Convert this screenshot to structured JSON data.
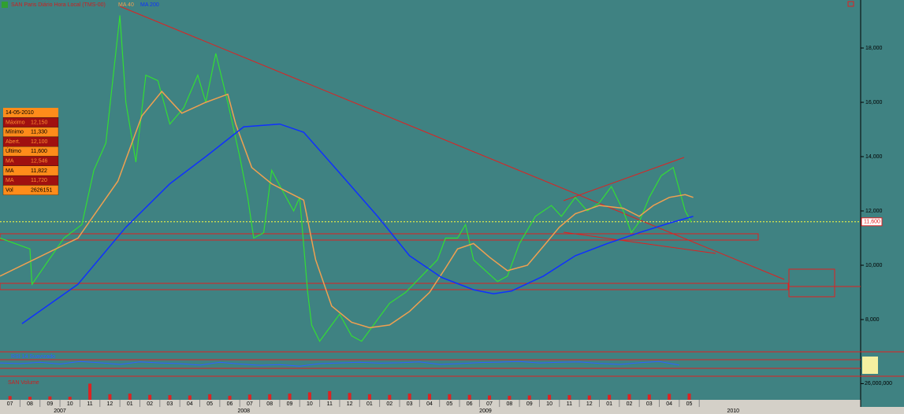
{
  "chart_data": {
    "type": "line",
    "title": "SAN Paris Diário Hora Local (TMS-00)",
    "xlim": [
      0,
      43.08
    ],
    "ylim": [
      6812,
      19768
    ],
    "yticks": [
      {
        "value": 8000,
        "label": "8,000"
      },
      {
        "value": 10000,
        "label": "10,000"
      },
      {
        "value": 12000,
        "label": "12,000"
      },
      {
        "value": 14000,
        "label": "14,000"
      },
      {
        "value": 16000,
        "label": "16,000"
      },
      {
        "value": 18000,
        "label": "18,000"
      }
    ],
    "xticks": [
      {
        "value": 0.5,
        "label": "07"
      },
      {
        "value": 1.5,
        "label": "08"
      },
      {
        "value": 2.5,
        "label": "09"
      },
      {
        "value": 3.5,
        "label": "10"
      },
      {
        "value": 4.5,
        "label": "11"
      },
      {
        "value": 5.5,
        "label": "12"
      },
      {
        "value": 6.5,
        "label": "01"
      },
      {
        "value": 7.5,
        "label": "02"
      },
      {
        "value": 8.5,
        "label": "03"
      },
      {
        "value": 9.5,
        "label": "04"
      },
      {
        "value": 10.5,
        "label": "05"
      },
      {
        "value": 11.5,
        "label": "06"
      },
      {
        "value": 12.5,
        "label": "07"
      },
      {
        "value": 13.5,
        "label": "08"
      },
      {
        "value": 14.5,
        "label": "09"
      },
      {
        "value": 15.5,
        "label": "10"
      },
      {
        "value": 16.5,
        "label": "11"
      },
      {
        "value": 17.5,
        "label": "12"
      },
      {
        "value": 18.5,
        "label": "01"
      },
      {
        "value": 19.5,
        "label": "02"
      },
      {
        "value": 20.5,
        "label": "03"
      },
      {
        "value": 21.5,
        "label": "04"
      },
      {
        "value": 22.5,
        "label": "05"
      },
      {
        "value": 23.5,
        "label": "06"
      },
      {
        "value": 24.5,
        "label": "07"
      },
      {
        "value": 25.5,
        "label": "08"
      },
      {
        "value": 26.5,
        "label": "09"
      },
      {
        "value": 27.5,
        "label": "10"
      },
      {
        "value": 28.5,
        "label": "11"
      },
      {
        "value": 29.5,
        "label": "12"
      },
      {
        "value": 30.5,
        "label": "01"
      },
      {
        "value": 31.5,
        "label": "02"
      },
      {
        "value": 32.5,
        "label": "03"
      },
      {
        "value": 33.5,
        "label": "04"
      },
      {
        "value": 34.5,
        "label": "05"
      }
    ],
    "year_ticks": [
      {
        "value": 3,
        "label": "2007"
      },
      {
        "value": 12.2,
        "label": "2008"
      },
      {
        "value": 24.3,
        "label": "2009"
      },
      {
        "value": 36.7,
        "label": "2010"
      }
    ],
    "last_price": {
      "value": 11600,
      "label": "11,600"
    },
    "series": [
      {
        "name": "SAN",
        "color": "#33dd33",
        "x": [
          0,
          1.5,
          1.6,
          3.2,
          4.1,
          4.7,
          5.3,
          6.0,
          6.3,
          6.8,
          7.3,
          7.9,
          8.5,
          9.2,
          9.9,
          10.3,
          10.8,
          11.4,
          12.0,
          12.4,
          12.7,
          13.2,
          13.6,
          14.1,
          14.7,
          15.0,
          15.4,
          15.6,
          16.0,
          16.6,
          17.0,
          17.6,
          18.1,
          18.7,
          19.5,
          20.3,
          21.1,
          21.9,
          22.3,
          22.9,
          23.3,
          23.7,
          24.3,
          24.9,
          25.4,
          26.0,
          26.8,
          27.6,
          28.1,
          28.8,
          29.4,
          30.0,
          30.6,
          31.2,
          31.6,
          32.0,
          32.5,
          33.1,
          33.7,
          34.0,
          34.3,
          34.6
        ],
        "values": [
          11000,
          10600,
          9300,
          11000,
          11500,
          13500,
          14500,
          19200,
          16000,
          13800,
          17000,
          16800,
          15200,
          15800,
          17000,
          16000,
          17800,
          16000,
          14000,
          12500,
          11000,
          11200,
          13500,
          12800,
          12000,
          12500,
          9000,
          7800,
          7200,
          7800,
          8200,
          7400,
          7200,
          7800,
          8600,
          9000,
          9600,
          10200,
          11000,
          11000,
          11500,
          10200,
          9800,
          9400,
          9600,
          10800,
          11800,
          12200,
          11800,
          12500,
          12000,
          12300,
          12900,
          12000,
          11200,
          11600,
          12500,
          13300,
          13600,
          12800,
          12000,
          11600
        ]
      },
      {
        "name": "MA 40",
        "color": "#f0a050",
        "x": [
          0,
          3.9,
          5.9,
          7.1,
          8.1,
          9.1,
          10.3,
          11.4,
          11.8,
          12.6,
          13.6,
          14.4,
          15.2,
          15.8,
          16.6,
          17.6,
          18.5,
          19.5,
          20.5,
          21.5,
          22.3,
          22.9,
          23.7,
          24.5,
          25.4,
          26.4,
          27.2,
          28.0,
          28.8,
          30.0,
          31.2,
          32.0,
          32.7,
          33.5,
          34.3,
          34.7
        ],
        "values": [
          9600,
          11000,
          13100,
          15500,
          16400,
          15600,
          16000,
          16300,
          15200,
          13600,
          13000,
          12700,
          12400,
          10200,
          8500,
          7900,
          7700,
          7800,
          8300,
          9000,
          9900,
          10600,
          10800,
          10300,
          9800,
          10000,
          10700,
          11400,
          11900,
          12200,
          12100,
          11800,
          12200,
          12500,
          12600,
          12500
        ]
      },
      {
        "name": "MA 200",
        "color": "#1030ff",
        "x": [
          1.1,
          3.9,
          6.3,
          8.5,
          10.3,
          12.2,
          14.0,
          15.2,
          17.0,
          18.9,
          20.5,
          22.1,
          23.7,
          24.7,
          25.6,
          27.2,
          28.8,
          30.4,
          32.0,
          33.5,
          34.7
        ],
        "values": [
          7850,
          9300,
          11400,
          13000,
          14000,
          15100,
          15200,
          14900,
          13400,
          11800,
          10350,
          9550,
          9100,
          8950,
          9050,
          9600,
          10350,
          10800,
          11200,
          11550,
          11800
        ]
      }
    ],
    "info": {
      "date": "14-05-2010",
      "rows": [
        [
          "Máximo",
          "12,150"
        ],
        [
          "Mínimo",
          "11,330"
        ],
        [
          "Abert.",
          "12,100"
        ],
        [
          "Último",
          "11,600"
        ],
        [
          "MA",
          "12,546"
        ],
        [
          "MA",
          "11,822"
        ],
        [
          "MA",
          "11,720"
        ],
        [
          "Vol",
          "2626151"
        ]
      ]
    },
    "rsi": {
      "name": "RSI 14 Suavizado",
      "color": "#3060ff",
      "ylim": [
        0,
        100
      ],
      "x": [
        0,
        1,
        2,
        3,
        4,
        5,
        6,
        7,
        8,
        9,
        10,
        11,
        12,
        13,
        14,
        15,
        16,
        17,
        18,
        19,
        20,
        21,
        22,
        23,
        24,
        25,
        26,
        27,
        28,
        29,
        30,
        31,
        32,
        33,
        34
      ],
      "values": [
        55,
        52,
        58,
        50,
        62,
        56,
        48,
        60,
        55,
        52,
        45,
        58,
        50,
        44,
        47,
        40,
        52,
        55,
        58,
        54,
        56,
        60,
        48,
        52,
        57,
        59,
        62,
        55,
        58,
        60,
        53,
        48,
        56,
        62,
        45
      ]
    },
    "volume": {
      "name": "SAN Volume",
      "color": "#dd2222",
      "ylim": [
        0,
        36600000
      ],
      "yticks": [
        {
          "value": 26000000,
          "label": "26,000,000"
        }
      ],
      "x": [
        0.5,
        1.5,
        2.5,
        3.5,
        4.5,
        5.5,
        6.5,
        7.5,
        8.5,
        9.5,
        10.5,
        11.5,
        12.5,
        13.5,
        14.5,
        15.5,
        16.5,
        17.5,
        18.5,
        19.5,
        20.5,
        21.5,
        22.5,
        23.5,
        24.5,
        25.5,
        26.5,
        27.5,
        28.5,
        29.5,
        30.5,
        31.5,
        32.5,
        33.5,
        34.5
      ],
      "values": [
        6000000,
        5000000,
        5500000,
        5000000,
        26000000,
        9000000,
        10000000,
        8000000,
        7500000,
        7000000,
        9000000,
        6500000,
        8500000,
        9000000,
        10000000,
        12000000,
        14000000,
        11000000,
        9000000,
        8000000,
        10000000,
        9500000,
        9000000,
        8000000,
        7000000,
        6500000,
        7000000,
        8000000,
        7500000,
        7000000,
        8000000,
        9000000,
        8500000,
        9500000,
        10000000
      ]
    }
  }
}
